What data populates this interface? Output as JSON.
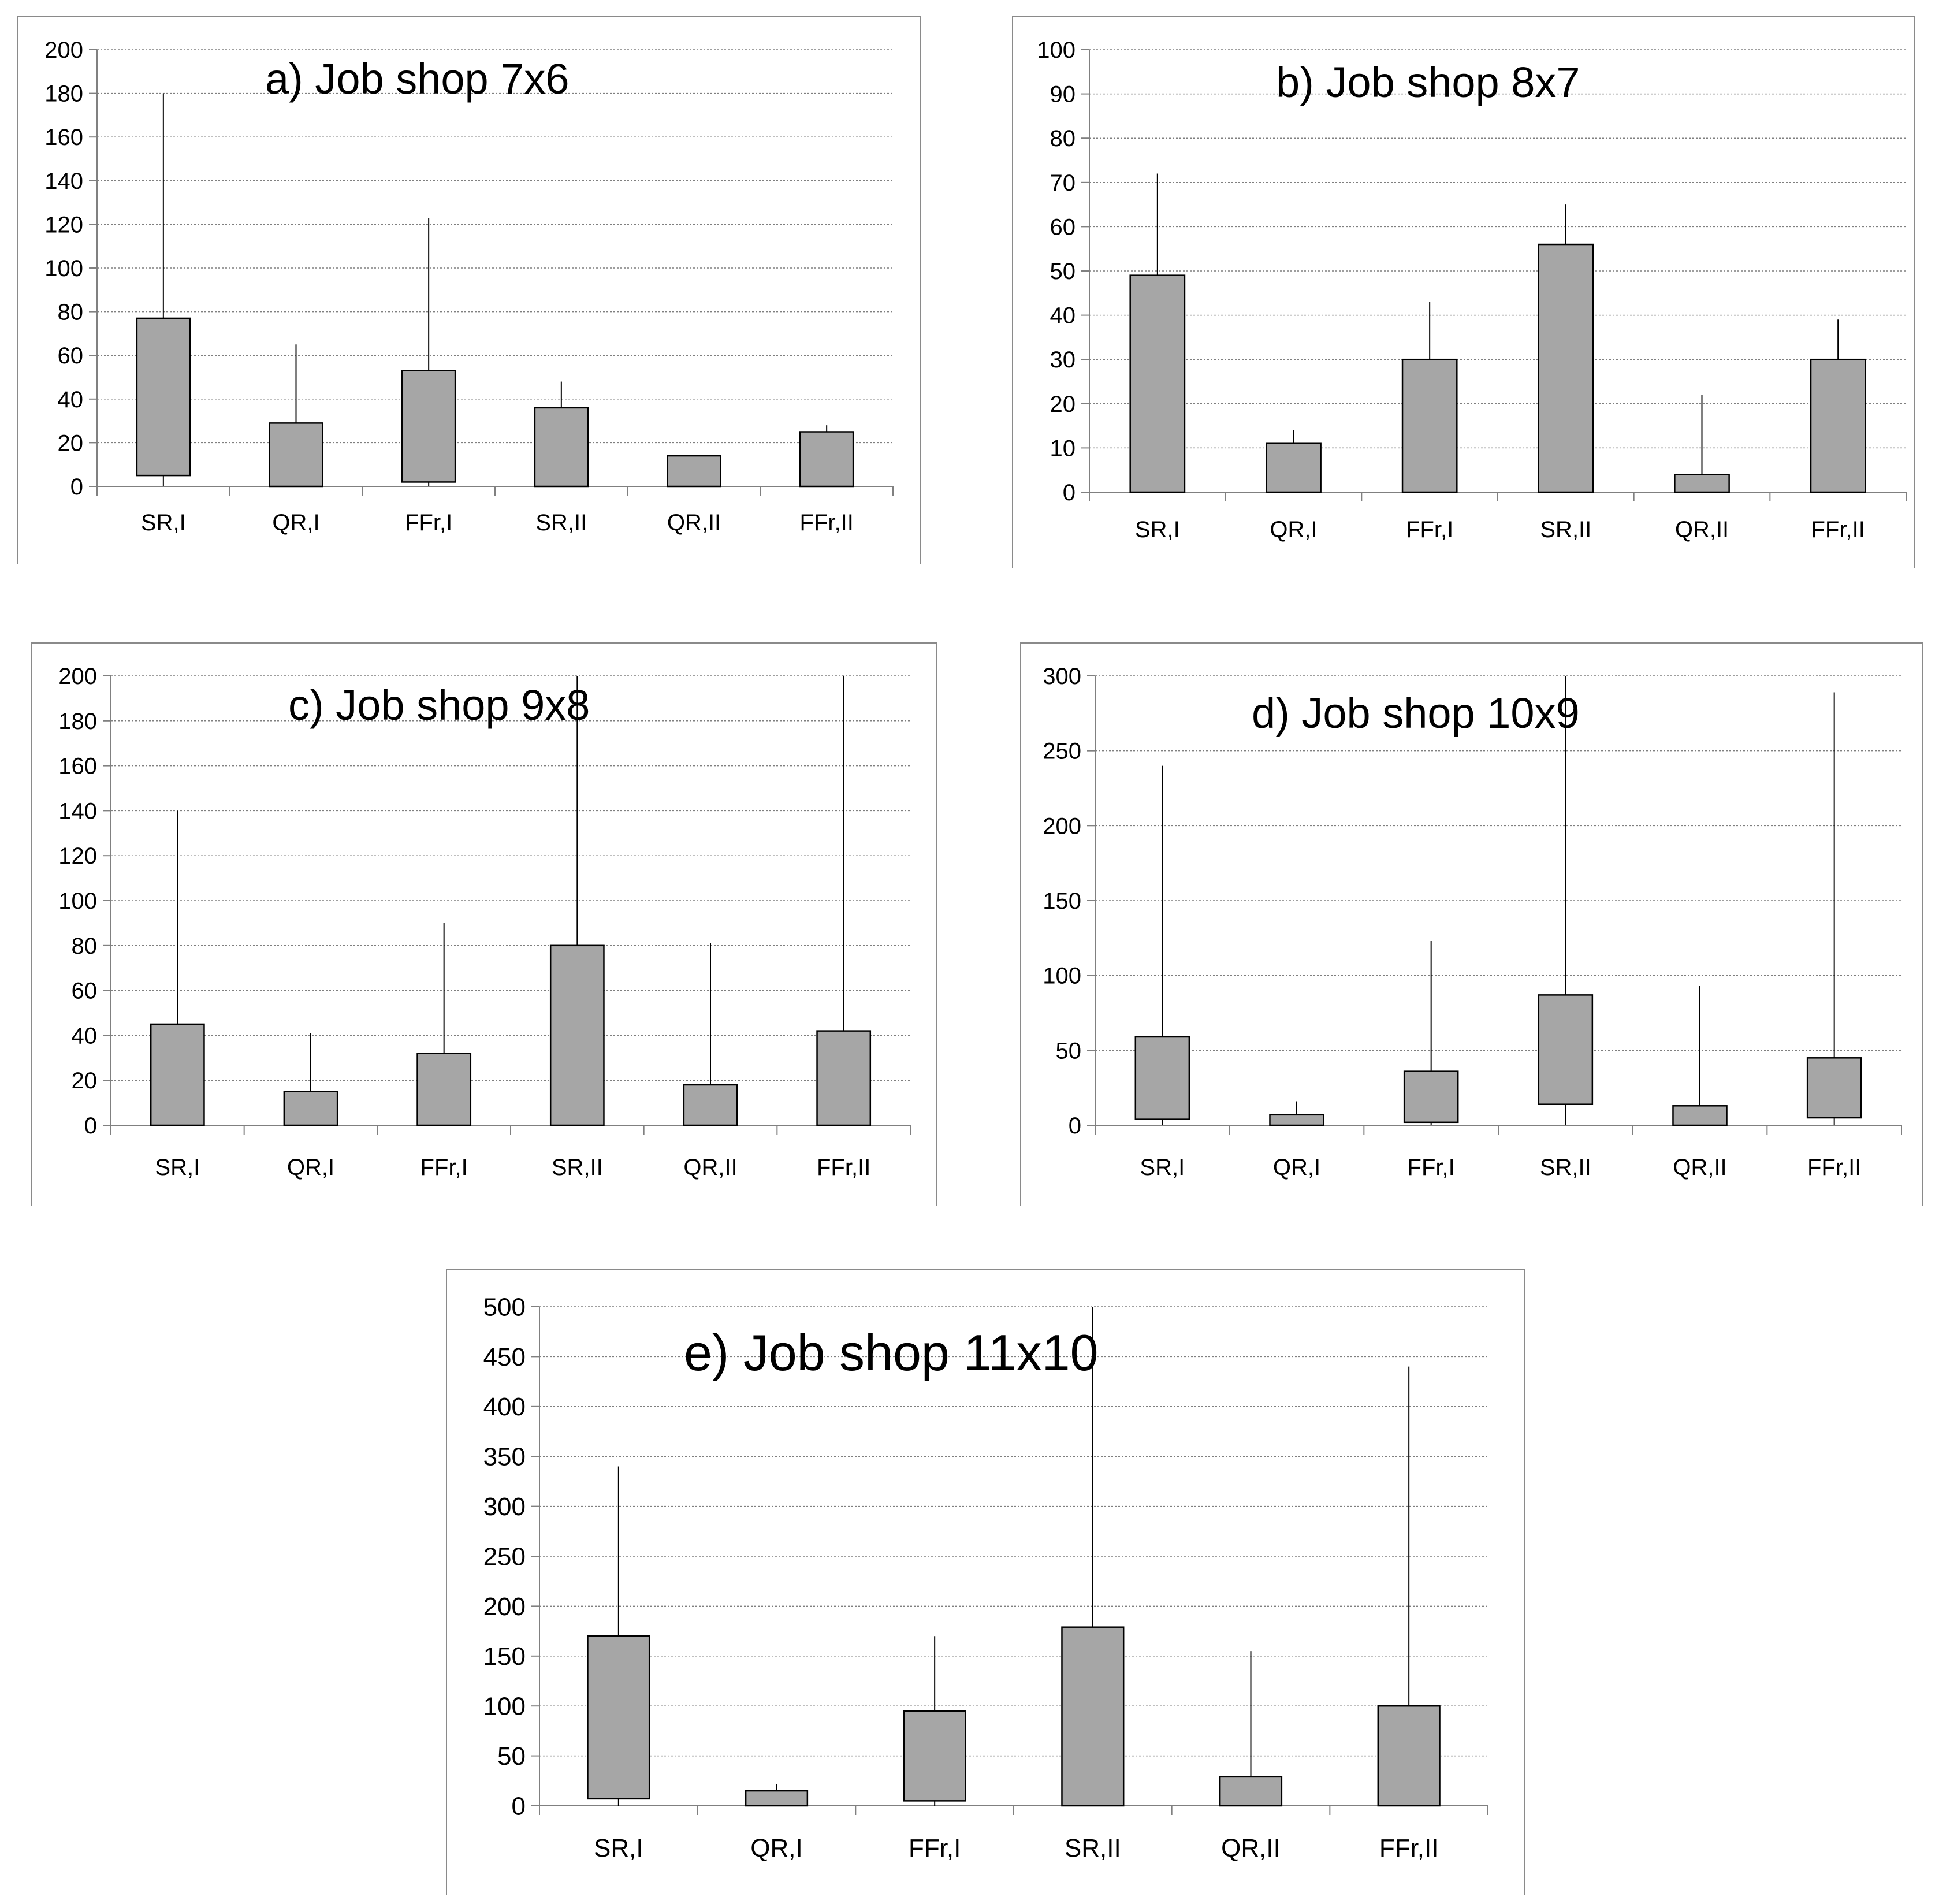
{
  "chart_data": [
    {
      "type": "box",
      "title": "a) Job shop 7x6",
      "categories": [
        "SR,I",
        "QR,I",
        "FFr,I",
        "SR,II",
        "QR,II",
        "FFr,II"
      ],
      "ylim": [
        0,
        200
      ],
      "yticks": [
        0,
        20,
        40,
        60,
        80,
        100,
        120,
        140,
        160,
        180,
        200
      ],
      "series": [
        {
          "name": "box_low",
          "values": [
            5,
            0,
            2,
            0,
            0,
            0
          ]
        },
        {
          "name": "box_high",
          "values": [
            77,
            29,
            53,
            36,
            14,
            25
          ]
        },
        {
          "name": "whisker_max",
          "values": [
            180,
            65,
            123,
            48,
            14,
            28
          ]
        }
      ],
      "xlabel": "",
      "ylabel": "",
      "grid": true
    },
    {
      "type": "box",
      "title": "b) Job shop 8x7",
      "categories": [
        "SR,I",
        "QR,I",
        "FFr,I",
        "SR,II",
        "QR,II",
        "FFr,II"
      ],
      "ylim": [
        0,
        100
      ],
      "yticks": [
        0,
        10,
        20,
        30,
        40,
        50,
        60,
        70,
        80,
        90,
        100
      ],
      "series": [
        {
          "name": "box_low",
          "values": [
            0,
            0,
            0,
            0,
            0,
            0
          ]
        },
        {
          "name": "box_high",
          "values": [
            49,
            11,
            30,
            56,
            4,
            30
          ]
        },
        {
          "name": "whisker_max",
          "values": [
            72,
            14,
            43,
            65,
            22,
            39
          ]
        }
      ],
      "xlabel": "",
      "ylabel": "",
      "grid": true
    },
    {
      "type": "box",
      "title": "c) Job shop 9x8",
      "categories": [
        "SR,I",
        "QR,I",
        "FFr,I",
        "SR,II",
        "QR,II",
        "FFr,II"
      ],
      "ylim": [
        0,
        200
      ],
      "yticks": [
        0,
        20,
        40,
        60,
        80,
        100,
        120,
        140,
        160,
        180,
        200
      ],
      "series": [
        {
          "name": "box_low",
          "values": [
            0,
            0,
            0,
            0,
            0,
            0
          ]
        },
        {
          "name": "box_high",
          "values": [
            45,
            15,
            32,
            80,
            18,
            42
          ]
        },
        {
          "name": "whisker_max",
          "values": [
            140,
            41,
            90,
            200,
            81,
            200
          ]
        }
      ],
      "xlabel": "",
      "ylabel": "",
      "grid": true
    },
    {
      "type": "box",
      "title": "d) Job shop 10x9",
      "categories": [
        "SR,I",
        "QR,I",
        "FFr,I",
        "SR,II",
        "QR,II",
        "FFr,II"
      ],
      "ylim": [
        0,
        300
      ],
      "yticks": [
        0,
        50,
        100,
        150,
        200,
        250,
        300
      ],
      "series": [
        {
          "name": "box_low",
          "values": [
            4,
            0,
            2,
            14,
            0,
            5
          ]
        },
        {
          "name": "box_high",
          "values": [
            59,
            7,
            36,
            87,
            13,
            45
          ]
        },
        {
          "name": "whisker_max",
          "values": [
            240,
            16,
            123,
            300,
            93,
            289
          ]
        }
      ],
      "xlabel": "",
      "ylabel": "",
      "grid": true
    },
    {
      "type": "box",
      "title": "e) Job shop 11x10",
      "categories": [
        "SR,I",
        "QR,I",
        "FFr,I",
        "SR,II",
        "QR,II",
        "FFr,II"
      ],
      "ylim": [
        0,
        500
      ],
      "yticks": [
        0,
        50,
        100,
        150,
        200,
        250,
        300,
        350,
        400,
        450,
        500
      ],
      "series": [
        {
          "name": "box_low",
          "values": [
            7,
            0,
            5,
            0,
            0,
            0
          ]
        },
        {
          "name": "box_high",
          "values": [
            170,
            15,
            95,
            179,
            29,
            100
          ]
        },
        {
          "name": "whisker_max",
          "values": [
            340,
            22,
            170,
            500,
            155,
            440
          ]
        }
      ],
      "xlabel": "",
      "ylabel": "",
      "grid": true
    }
  ]
}
